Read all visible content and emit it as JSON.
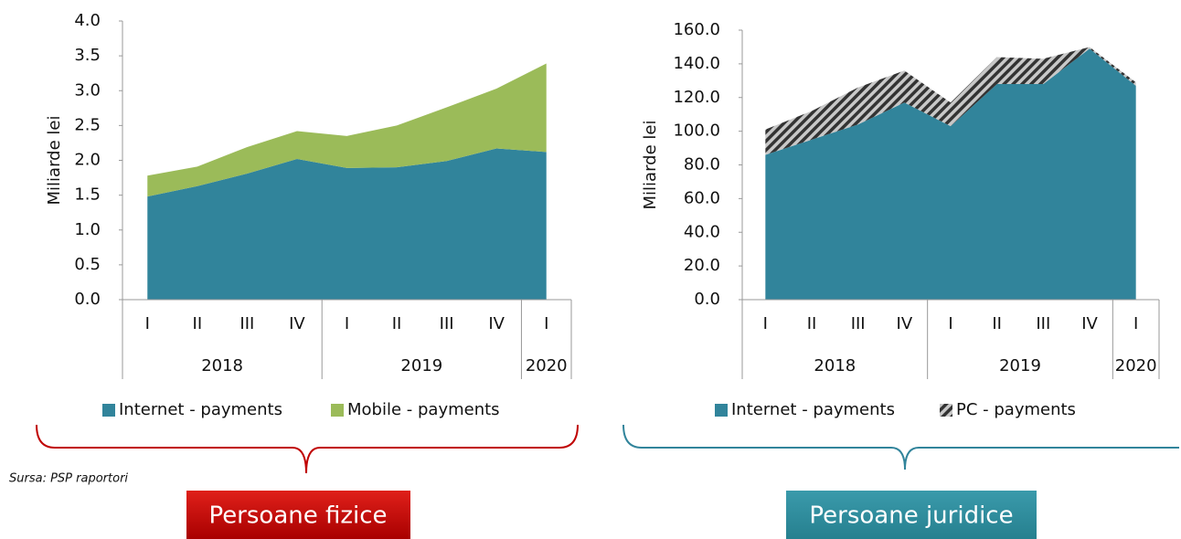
{
  "chart_data": [
    {
      "type": "area",
      "stacked": true,
      "y_label": "Miliarde lei",
      "categories": [
        "I",
        "II",
        "III",
        "IV",
        "I",
        "II",
        "III",
        "IV",
        "I"
      ],
      "category_groups": [
        "2018",
        null,
        null,
        null,
        "2019",
        null,
        null,
        null,
        "2020"
      ],
      "series": [
        {
          "name": "Internet - payments",
          "color": "#31849b",
          "values": [
            1.48,
            1.63,
            1.81,
            2.02,
            1.89,
            1.9,
            1.99,
            2.17,
            2.12
          ]
        },
        {
          "name": "Mobile - payments",
          "color": "#9bbb59",
          "values": [
            0.3,
            0.28,
            0.38,
            0.4,
            0.46,
            0.6,
            0.77,
            0.86,
            1.27
          ]
        }
      ],
      "ylim": [
        0,
        4
      ],
      "yticks": [
        {
          "value": 0,
          "label": "0.0"
        },
        {
          "value": 0.5,
          "label": "0.5"
        },
        {
          "value": 1,
          "label": "1.0"
        },
        {
          "value": 1.5,
          "label": "1.5"
        },
        {
          "value": 2,
          "label": "2.0"
        },
        {
          "value": 2.5,
          "label": "2.5"
        },
        {
          "value": 3,
          "label": "3.0"
        },
        {
          "value": 3.5,
          "label": "3.5"
        },
        {
          "value": 4,
          "label": "4.0"
        }
      ]
    },
    {
      "type": "area",
      "stacked": true,
      "y_label": "Miliarde lei",
      "categories": [
        "I",
        "II",
        "III",
        "IV",
        "I",
        "II",
        "III",
        "IV",
        "I"
      ],
      "category_groups": [
        "2018",
        null,
        null,
        null,
        "2019",
        null,
        null,
        null,
        "2020"
      ],
      "series": [
        {
          "name": "Internet - payments",
          "color": "#31849b",
          "values": [
            86,
            95,
            104,
            117,
            103,
            128,
            128,
            149,
            127
          ]
        },
        {
          "name": "PC - payments",
          "color": "#404040",
          "pattern": "hatched",
          "values": [
            15,
            17,
            22,
            19,
            14,
            16,
            15,
            1,
            2
          ]
        }
      ],
      "ylim": [
        0,
        160
      ],
      "yticks": [
        {
          "value": 0,
          "label": "0.0"
        },
        {
          "value": 20,
          "label": "20.0"
        },
        {
          "value": 40,
          "label": "40.0"
        },
        {
          "value": 60,
          "label": "60.0"
        },
        {
          "value": 80,
          "label": "80.0"
        },
        {
          "value": 100,
          "label": "100.0"
        },
        {
          "value": 120,
          "label": "120.0"
        },
        {
          "value": 140,
          "label": "140.0"
        },
        {
          "value": 160,
          "label": "160.0"
        }
      ]
    }
  ],
  "source": "Sursa: PSP raportori",
  "labels": [
    "Persoane fizice",
    "Persoane juridice"
  ]
}
